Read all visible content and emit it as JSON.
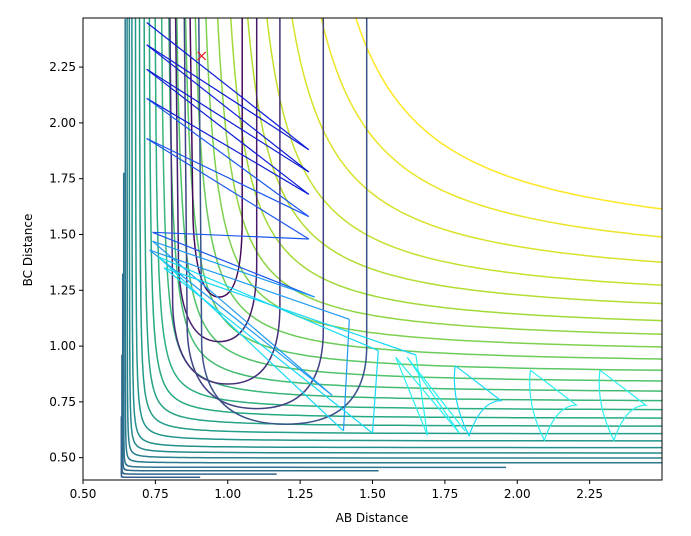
{
  "chart_data": {
    "type": "contour",
    "title": "",
    "xlabel": "AB Distance",
    "ylabel": "BC Distance",
    "xlim": [
      0.5,
      2.5
    ],
    "ylim": [
      0.4,
      2.47
    ],
    "xticks": [
      0.5,
      0.75,
      1.0,
      1.25,
      1.5,
      1.75,
      2.0,
      2.25
    ],
    "yticks": [
      0.5,
      0.75,
      1.0,
      1.25,
      1.5,
      1.75,
      2.0,
      2.25
    ],
    "xtick_labels": [
      "0.50",
      "0.75",
      "1.00",
      "1.25",
      "1.50",
      "1.75",
      "2.00",
      "2.25"
    ],
    "ytick_labels": [
      "0.50",
      "0.75",
      "1.00",
      "1.25",
      "1.50",
      "1.75",
      "2.00",
      "2.25"
    ],
    "grid": false,
    "colormap": "viridis",
    "contours": {
      "asymptote_r": 0.63,
      "level_count": 26,
      "corner_offsets": [
        0.1,
        0.14,
        0.18,
        0.22,
        0.27,
        0.32,
        0.37,
        0.42,
        0.48,
        0.54,
        0.6,
        0.66,
        0.72,
        0.78,
        0.84,
        0.9,
        0.96,
        1.02,
        1.08,
        1.14,
        1.2,
        1.27,
        1.34,
        1.42,
        1.5,
        1.58
      ]
    },
    "well_contours": {
      "center": [
        0.95,
        2.3
      ],
      "tips": [
        {
          "x": 0.97,
          "y": 1.22
        },
        {
          "x": 0.97,
          "y": 1.02
        },
        {
          "x": 1.0,
          "y": 0.83
        },
        {
          "x": 1.1,
          "y": 0.72
        },
        {
          "x": 1.2,
          "y": 0.65
        }
      ]
    },
    "marker": {
      "x": 0.91,
      "y": 2.3,
      "symbol": "x",
      "color": "#e41a1c"
    },
    "trajectory": {
      "colors": [
        "#0c1bd8",
        "#1a56f0",
        "#1f9af2",
        "#16d8f5",
        "#28f0ee"
      ],
      "points": [
        [
          0.72,
          2.45
        ],
        [
          1.28,
          1.88
        ],
        [
          0.72,
          2.35
        ],
        [
          1.28,
          1.78
        ],
        [
          0.72,
          2.24
        ],
        [
          1.28,
          1.68
        ],
        [
          0.72,
          2.11
        ],
        [
          1.28,
          1.58
        ],
        [
          0.72,
          1.93
        ],
        [
          1.28,
          1.48
        ],
        [
          0.74,
          1.51
        ],
        [
          1.3,
          1.22
        ],
        [
          0.74,
          1.47
        ],
        [
          1.36,
          0.78
        ],
        [
          0.73,
          1.43
        ],
        [
          1.42,
          1.12
        ],
        [
          1.4,
          0.62
        ],
        [
          0.76,
          1.4
        ],
        [
          1.52,
          0.98
        ],
        [
          1.5,
          0.61
        ],
        [
          0.78,
          1.35
        ],
        [
          1.65,
          0.96
        ],
        [
          1.69,
          0.6
        ],
        [
          1.58,
          0.95
        ],
        [
          1.8,
          0.61
        ],
        [
          1.62,
          0.95
        ],
        [
          1.82,
          0.62
        ]
      ],
      "tail_loops": [
        {
          "x": 1.82,
          "y": 0.8
        },
        {
          "x": 2.08,
          "y": 0.78
        },
        {
          "x": 2.32,
          "y": 0.78
        }
      ]
    }
  }
}
